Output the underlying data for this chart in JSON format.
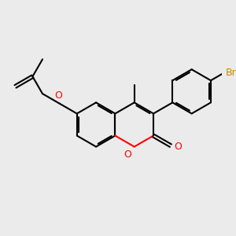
{
  "bg_color": "#ebebeb",
  "bond_color": "#000000",
  "bond_width": 1.5,
  "atom_colors": {
    "O": "#ff0000",
    "Br": "#cc8800",
    "C": "#000000"
  },
  "font_size_label": 9,
  "font_size_br": 9
}
